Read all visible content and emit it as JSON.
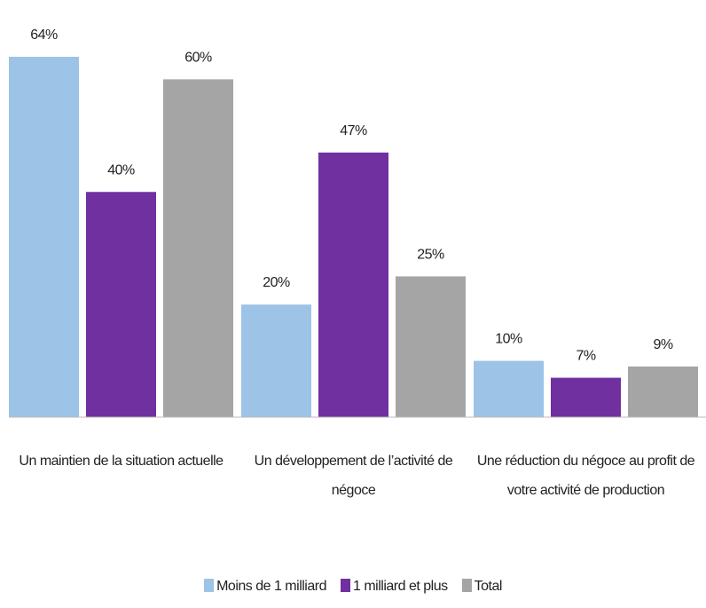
{
  "chart_data": {
    "type": "bar",
    "categories": [
      "Un maintien de la situation actuelle",
      "Un développement de l’activité de négoce",
      "Une réduction du négoce au profit de votre activité de production"
    ],
    "series": [
      {
        "name": "Moins de 1 milliard",
        "color": "#9dc3e6",
        "values": [
          64,
          20,
          10
        ],
        "value_labels": [
          "64%",
          "20%",
          "10%"
        ]
      },
      {
        "name": "1 milliard et plus",
        "color": "#7030a0",
        "values": [
          40,
          47,
          7
        ],
        "value_labels": [
          "40%",
          "47%",
          "7%"
        ]
      },
      {
        "name": "Total",
        "color": "#a5a5a5",
        "values": [
          60,
          25,
          9
        ],
        "value_labels": [
          "60%",
          "25%",
          "9%"
        ]
      }
    ],
    "legend": "bottom"
  }
}
